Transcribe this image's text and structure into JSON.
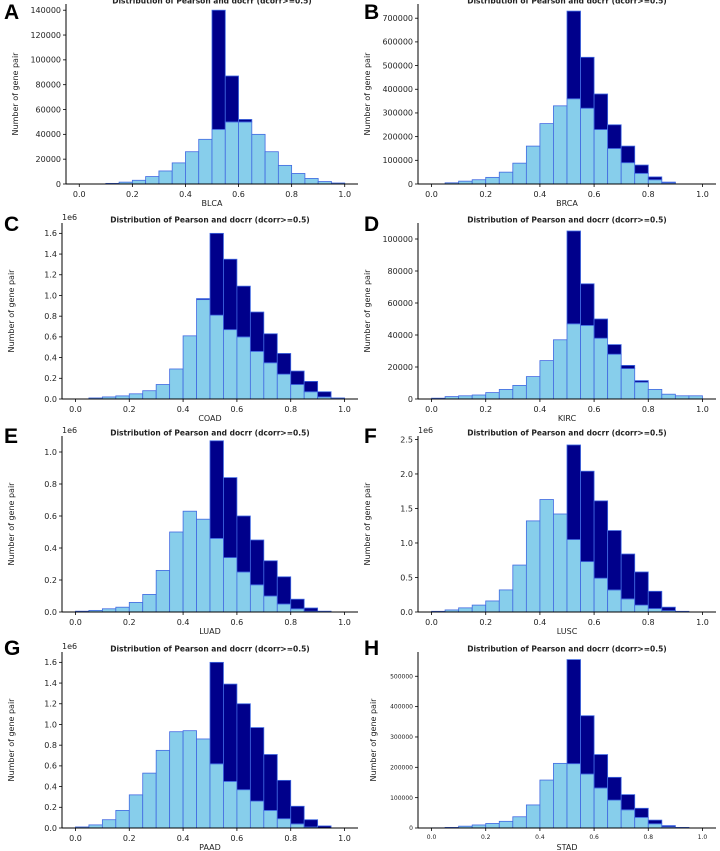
{
  "colors": {
    "light": "#87ceeb",
    "dark": "#00008b",
    "edge": "#4169e1",
    "axis": "#000000"
  },
  "chart_data": [
    {
      "panel": "A",
      "type": "bar",
      "stacked": true,
      "title": "Distribution of Pearson and docrr (dcorr>=0.5)",
      "xlabel": "BLCA",
      "ylabel": "Number of gene pair",
      "y_multiplier": "",
      "xlim": [
        -0.05,
        1.05
      ],
      "ylim": [
        0,
        145000
      ],
      "xticks": [
        0.0,
        0.2,
        0.4,
        0.6,
        0.8,
        1.0
      ],
      "xtick_labels": [
        "0.0",
        "0.2",
        "0.4",
        "0.6",
        "0.8",
        "1.0"
      ],
      "yticks": [
        0,
        20000,
        40000,
        60000,
        80000,
        100000,
        120000,
        140000
      ],
      "ytick_labels": [
        "0",
        "20000",
        "40000",
        "60000",
        "80000",
        "100000",
        "120000",
        "140000"
      ],
      "bins": [
        0.0,
        0.05,
        0.1,
        0.15,
        0.2,
        0.25,
        0.3,
        0.35,
        0.4,
        0.45,
        0.5,
        0.55,
        0.6,
        0.65,
        0.7,
        0.75,
        0.8,
        0.85,
        0.9,
        0.95
      ],
      "bin_width": 0.05,
      "series": [
        {
          "name": "Pearson",
          "values": [
            0,
            0,
            500,
            1500,
            3000,
            6000,
            10500,
            17000,
            26000,
            36000,
            44000,
            50000,
            50000,
            40000,
            26000,
            15000,
            8500,
            4500,
            2000,
            800
          ]
        },
        {
          "name": "dcorr>=0.5",
          "values": [
            0,
            0,
            0,
            0,
            0,
            0,
            0,
            0,
            0,
            0,
            96000,
            37000,
            2000,
            0,
            0,
            0,
            0,
            0,
            0,
            0
          ]
        }
      ]
    },
    {
      "panel": "B",
      "type": "bar",
      "stacked": true,
      "title": "Distribution of Pearson and docrr (dcorr>=0.5)",
      "xlabel": "BRCA",
      "ylabel": "Number of gene pair",
      "y_multiplier": "",
      "xlim": [
        -0.05,
        1.05
      ],
      "ylim": [
        0,
        760000
      ],
      "xticks": [
        0.0,
        0.2,
        0.4,
        0.6,
        0.8,
        1.0
      ],
      "xtick_labels": [
        "0.0",
        "0.2",
        "0.4",
        "0.6",
        "0.8",
        "1.0"
      ],
      "yticks": [
        0,
        100000,
        200000,
        300000,
        400000,
        500000,
        600000,
        700000
      ],
      "ytick_labels": [
        "0",
        "100000",
        "200000",
        "300000",
        "400000",
        "500000",
        "600000",
        "700000"
      ],
      "bins": [
        0.0,
        0.05,
        0.1,
        0.15,
        0.2,
        0.25,
        0.3,
        0.35,
        0.4,
        0.45,
        0.5,
        0.55,
        0.6,
        0.65,
        0.7,
        0.75,
        0.8,
        0.85,
        0.9,
        0.95
      ],
      "bin_width": 0.05,
      "series": [
        {
          "name": "Pearson",
          "values": [
            0,
            5000,
            12000,
            18000,
            28000,
            50000,
            88000,
            160000,
            255000,
            330000,
            360000,
            320000,
            230000,
            150000,
            90000,
            45000,
            18000,
            5000,
            0,
            0
          ]
        },
        {
          "name": "dcorr>=0.5",
          "values": [
            0,
            0,
            0,
            0,
            0,
            0,
            0,
            0,
            0,
            0,
            370000,
            215000,
            150000,
            100000,
            70000,
            35000,
            12000,
            3000,
            0,
            0
          ]
        }
      ]
    },
    {
      "panel": "C",
      "type": "bar",
      "stacked": true,
      "title": "Distribution of Pearson and docrr (dcorr>=0.5)",
      "xlabel": "COAD",
      "ylabel": "Number of gene pair",
      "y_multiplier": "1e6",
      "xlim": [
        -0.05,
        1.05
      ],
      "ylim": [
        0,
        1.7
      ],
      "xticks": [
        0.0,
        0.2,
        0.4,
        0.6,
        0.8,
        1.0
      ],
      "xtick_labels": [
        "0.0",
        "0.2",
        "0.4",
        "0.6",
        "0.8",
        "1.0"
      ],
      "yticks": [
        0,
        0.2,
        0.4,
        0.6,
        0.8,
        1.0,
        1.2,
        1.4,
        1.6
      ],
      "ytick_labels": [
        "0.0",
        "0.2",
        "0.4",
        "0.6",
        "0.8",
        "1.0",
        "1.2",
        "1.4",
        "1.6"
      ],
      "bins": [
        0.0,
        0.05,
        0.1,
        0.15,
        0.2,
        0.25,
        0.3,
        0.35,
        0.4,
        0.45,
        0.5,
        0.55,
        0.6,
        0.65,
        0.7,
        0.75,
        0.8,
        0.85,
        0.9,
        0.95
      ],
      "bin_width": 0.05,
      "series": [
        {
          "name": "Pearson",
          "values": [
            0,
            0.01,
            0.02,
            0.03,
            0.05,
            0.08,
            0.14,
            0.29,
            0.61,
            0.96,
            0.81,
            0.67,
            0.6,
            0.46,
            0.35,
            0.24,
            0.14,
            0.07,
            0.02,
            0.005
          ]
        },
        {
          "name": "dcorr>=0.5",
          "values": [
            0,
            0,
            0,
            0,
            0,
            0,
            0,
            0,
            0,
            0.01,
            0.79,
            0.68,
            0.49,
            0.38,
            0.28,
            0.2,
            0.13,
            0.1,
            0.05,
            0.005
          ]
        }
      ]
    },
    {
      "panel": "D",
      "type": "bar",
      "stacked": true,
      "title": "Distribution of Pearson and docrr (dcorr>=0.5)",
      "xlabel": "KIRC",
      "ylabel": "Number of gene pair",
      "y_multiplier": "",
      "xlim": [
        -0.05,
        1.05
      ],
      "ylim": [
        0,
        110000
      ],
      "xticks": [
        0.0,
        0.2,
        0.4,
        0.6,
        0.8,
        1.0
      ],
      "xtick_labels": [
        "0.0",
        "0.2",
        "0.4",
        "0.6",
        "0.8",
        "1.0"
      ],
      "yticks": [
        0,
        20000,
        40000,
        60000,
        80000,
        100000
      ],
      "ytick_labels": [
        "0",
        "20000",
        "40000",
        "60000",
        "80000",
        "100000"
      ],
      "bins": [
        0.0,
        0.05,
        0.1,
        0.15,
        0.2,
        0.25,
        0.3,
        0.35,
        0.4,
        0.45,
        0.5,
        0.55,
        0.6,
        0.65,
        0.7,
        0.75,
        0.8,
        0.85,
        0.9,
        0.95
      ],
      "bin_width": 0.05,
      "series": [
        {
          "name": "Pearson",
          "values": [
            500,
            1500,
            2000,
            2500,
            4000,
            6000,
            8500,
            14000,
            24000,
            37000,
            47000,
            46000,
            38000,
            28000,
            19000,
            10500,
            6000,
            3000,
            2000,
            2000
          ]
        },
        {
          "name": "dcorr>=0.5",
          "values": [
            0,
            0,
            0,
            0,
            0,
            0,
            0,
            0,
            0,
            0,
            58000,
            26000,
            12000,
            6000,
            2000,
            1000,
            0,
            0,
            0,
            0
          ]
        }
      ]
    },
    {
      "panel": "E",
      "type": "bar",
      "stacked": true,
      "title": "Distribution of Pearson and docrr (dcorr>=0.5)",
      "xlabel": "LUAD",
      "ylabel": "Number of gene pair",
      "y_multiplier": "1e6",
      "xlim": [
        -0.05,
        1.05
      ],
      "ylim": [
        0,
        1.1
      ],
      "xticks": [
        0.0,
        0.2,
        0.4,
        0.6,
        0.8,
        1.0
      ],
      "xtick_labels": [
        "0.0",
        "0.2",
        "0.4",
        "0.6",
        "0.8",
        "1.0"
      ],
      "yticks": [
        0,
        0.2,
        0.4,
        0.6,
        0.8,
        1.0
      ],
      "ytick_labels": [
        "0.0",
        "0.2",
        "0.4",
        "0.6",
        "0.8",
        "1.0"
      ],
      "bins": [
        0.0,
        0.05,
        0.1,
        0.15,
        0.2,
        0.25,
        0.3,
        0.35,
        0.4,
        0.45,
        0.5,
        0.55,
        0.6,
        0.65,
        0.7,
        0.75,
        0.8,
        0.85,
        0.9,
        0.95
      ],
      "bin_width": 0.05,
      "series": [
        {
          "name": "Pearson",
          "values": [
            0.005,
            0.01,
            0.02,
            0.03,
            0.06,
            0.11,
            0.26,
            0.5,
            0.63,
            0.58,
            0.46,
            0.34,
            0.25,
            0.17,
            0.1,
            0.05,
            0.02,
            0.005,
            0,
            0
          ]
        },
        {
          "name": "dcorr>=0.5",
          "values": [
            0,
            0,
            0,
            0,
            0,
            0,
            0,
            0,
            0,
            0,
            0.61,
            0.5,
            0.35,
            0.28,
            0.22,
            0.17,
            0.06,
            0.02,
            0.005,
            0
          ]
        }
      ]
    },
    {
      "panel": "F",
      "type": "bar",
      "stacked": true,
      "title": "Distribution of Pearson and docrr (dcorr>=0.5)",
      "xlabel": "LUSC",
      "ylabel": "Number of gene pair",
      "y_multiplier": "1e6",
      "xlim": [
        -0.05,
        1.05
      ],
      "ylim": [
        0,
        2.55
      ],
      "xticks": [
        0.0,
        0.2,
        0.4,
        0.6,
        0.8,
        1.0
      ],
      "xtick_labels": [
        "0.0",
        "0.2",
        "0.4",
        "0.6",
        "0.8",
        "1.0"
      ],
      "yticks": [
        0,
        0.5,
        1.0,
        1.5,
        2.0,
        2.5
      ],
      "ytick_labels": [
        "0.0",
        "0.5",
        "1.0",
        "1.5",
        "2.0",
        "2.5"
      ],
      "bins": [
        0.0,
        0.05,
        0.1,
        0.15,
        0.2,
        0.25,
        0.3,
        0.35,
        0.4,
        0.45,
        0.5,
        0.55,
        0.6,
        0.65,
        0.7,
        0.75,
        0.8,
        0.85,
        0.9,
        0.95
      ],
      "bin_width": 0.05,
      "series": [
        {
          "name": "Pearson",
          "values": [
            0.01,
            0.03,
            0.06,
            0.1,
            0.16,
            0.32,
            0.68,
            1.32,
            1.63,
            1.42,
            1.05,
            0.73,
            0.49,
            0.32,
            0.19,
            0.1,
            0.05,
            0.02,
            0,
            0
          ]
        },
        {
          "name": "dcorr>=0.5",
          "values": [
            0,
            0,
            0,
            0,
            0,
            0,
            0,
            0,
            0,
            0,
            1.37,
            1.31,
            1.12,
            0.86,
            0.65,
            0.48,
            0.25,
            0.05,
            0.01,
            0
          ]
        }
      ]
    },
    {
      "panel": "G",
      "type": "bar",
      "stacked": true,
      "title": "Distribution of Pearson and docrr (dcorr>=0.5)",
      "xlabel": "PAAD",
      "ylabel": "Number of gene pair",
      "y_multiplier": "1e6",
      "xlim": [
        -0.05,
        1.05
      ],
      "ylim": [
        0,
        1.7
      ],
      "xticks": [
        0.0,
        0.2,
        0.4,
        0.6,
        0.8,
        1.0
      ],
      "xtick_labels": [
        "0.0",
        "0.2",
        "0.4",
        "0.6",
        "0.8",
        "1.0"
      ],
      "yticks": [
        0,
        0.2,
        0.4,
        0.6,
        0.8,
        1.0,
        1.2,
        1.4,
        1.6
      ],
      "ytick_labels": [
        "0.0",
        "0.2",
        "0.4",
        "0.6",
        "0.8",
        "1.0",
        "1.2",
        "1.4",
        "1.6"
      ],
      "bins": [
        0.0,
        0.05,
        0.1,
        0.15,
        0.2,
        0.25,
        0.3,
        0.35,
        0.4,
        0.45,
        0.5,
        0.55,
        0.6,
        0.65,
        0.7,
        0.75,
        0.8,
        0.85,
        0.9,
        0.95
      ],
      "bin_width": 0.05,
      "series": [
        {
          "name": "Pearson",
          "values": [
            0.01,
            0.03,
            0.08,
            0.17,
            0.32,
            0.53,
            0.75,
            0.93,
            0.94,
            0.86,
            0.62,
            0.45,
            0.37,
            0.26,
            0.17,
            0.09,
            0.04,
            0.01,
            0,
            0
          ]
        },
        {
          "name": "dcorr>=0.5",
          "values": [
            0,
            0,
            0,
            0,
            0,
            0,
            0,
            0,
            0,
            0,
            0.98,
            0.94,
            0.83,
            0.71,
            0.54,
            0.37,
            0.17,
            0.07,
            0.02,
            0
          ]
        }
      ]
    },
    {
      "panel": "H",
      "type": "bar",
      "stacked": true,
      "title": "Distribution of Pearson and docrr (dcorr>=0.5)",
      "xlabel": "STAD",
      "ylabel": "Number of gene pair",
      "y_multiplier": "",
      "xlim": [
        -0.05,
        1.05
      ],
      "ylim": [
        0,
        580000
      ],
      "xticks": [
        0.0,
        0.2,
        0.4,
        0.6,
        0.8,
        1.0
      ],
      "xtick_labels": [
        "0.0",
        "0.2",
        "0.4",
        "0.6",
        "0.8",
        "1.0"
      ],
      "yticks": [
        0,
        100000,
        200000,
        300000,
        400000,
        500000
      ],
      "ytick_labels": [
        "0",
        "100000",
        "200000",
        "300000",
        "400000",
        "500000"
      ],
      "bins": [
        0.0,
        0.05,
        0.1,
        0.15,
        0.2,
        0.25,
        0.3,
        0.35,
        0.4,
        0.45,
        0.5,
        0.55,
        0.6,
        0.65,
        0.7,
        0.75,
        0.8,
        0.85,
        0.9,
        0.95
      ],
      "bin_width": 0.05,
      "series": [
        {
          "name": "Pearson",
          "values": [
            500,
            2000,
            6000,
            10000,
            15000,
            22000,
            37000,
            76000,
            158000,
            213000,
            212000,
            178000,
            132000,
            92000,
            60000,
            35000,
            14000,
            4000,
            1000,
            0
          ]
        },
        {
          "name": "dcorr>=0.5",
          "values": [
            0,
            0,
            0,
            0,
            0,
            0,
            0,
            0,
            0,
            0,
            343000,
            192000,
            110000,
            75000,
            50000,
            30000,
            12000,
            4000,
            1000,
            0
          ]
        }
      ]
    }
  ]
}
